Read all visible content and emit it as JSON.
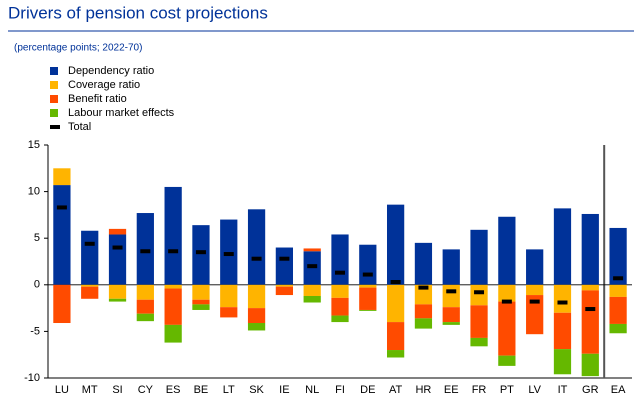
{
  "chart_data": {
    "type": "bar",
    "stacked": true,
    "title": "Drivers of pension cost projections",
    "subtitle": "(percentage points; 2022-70)",
    "categories": [
      "LU",
      "MT",
      "SI",
      "CY",
      "ES",
      "BE",
      "LT",
      "SK",
      "IE",
      "NL",
      "FI",
      "DE",
      "AT",
      "HR",
      "EE",
      "FR",
      "PT",
      "LV",
      "IT",
      "GR",
      "EA"
    ],
    "series": [
      {
        "name": "Dependency ratio",
        "color": "#003299",
        "values": [
          10.7,
          5.8,
          5.4,
          7.7,
          10.5,
          6.4,
          7.0,
          8.1,
          4.0,
          3.6,
          5.4,
          4.3,
          8.6,
          4.5,
          3.8,
          5.9,
          7.3,
          3.8,
          8.2,
          7.6,
          6.1
        ]
      },
      {
        "name": "Coverage  ratio",
        "color": "#ffb400",
        "values": [
          1.8,
          -0.2,
          -1.5,
          -1.6,
          -0.4,
          -1.6,
          -2.4,
          -2.5,
          -0.2,
          -1.2,
          -1.4,
          -0.3,
          -4.0,
          -2.1,
          -2.4,
          -2.2,
          -1.8,
          -1.1,
          -3.0,
          -0.6,
          -1.3
        ]
      },
      {
        "name": "Benefit ratio",
        "color": "#ff4b00",
        "values": [
          -4.1,
          -1.3,
          0.6,
          -1.5,
          -3.9,
          -0.5,
          -1.1,
          -1.6,
          -0.9,
          0.3,
          -1.9,
          -2.4,
          -3.0,
          -1.5,
          -1.6,
          -3.5,
          -5.8,
          -4.2,
          -3.9,
          -6.8,
          -2.9
        ]
      },
      {
        "name": "Labour market effects",
        "color": "#65b800",
        "values": [
          0,
          0,
          -0.3,
          -0.8,
          -1.9,
          -0.6,
          0,
          -0.8,
          0,
          -0.7,
          -0.7,
          -0.1,
          -0.8,
          -1.1,
          -0.3,
          -0.9,
          -1.1,
          0,
          -2.7,
          -2.4,
          -1.0
        ]
      },
      {
        "name": "Total",
        "color": "#000000",
        "marker": "dash",
        "values": [
          8.3,
          4.4,
          4.0,
          3.6,
          3.6,
          3.5,
          3.3,
          2.8,
          2.8,
          2.0,
          1.3,
          1.1,
          0.3,
          -0.3,
          -0.7,
          -0.8,
          -1.8,
          -1.8,
          -1.9,
          -2.6,
          0.7
        ]
      }
    ],
    "ylim": [
      -10,
      15
    ],
    "yticks": [
      -10,
      -5,
      0,
      5,
      10,
      15
    ],
    "grid": false,
    "legend": "top-left"
  }
}
